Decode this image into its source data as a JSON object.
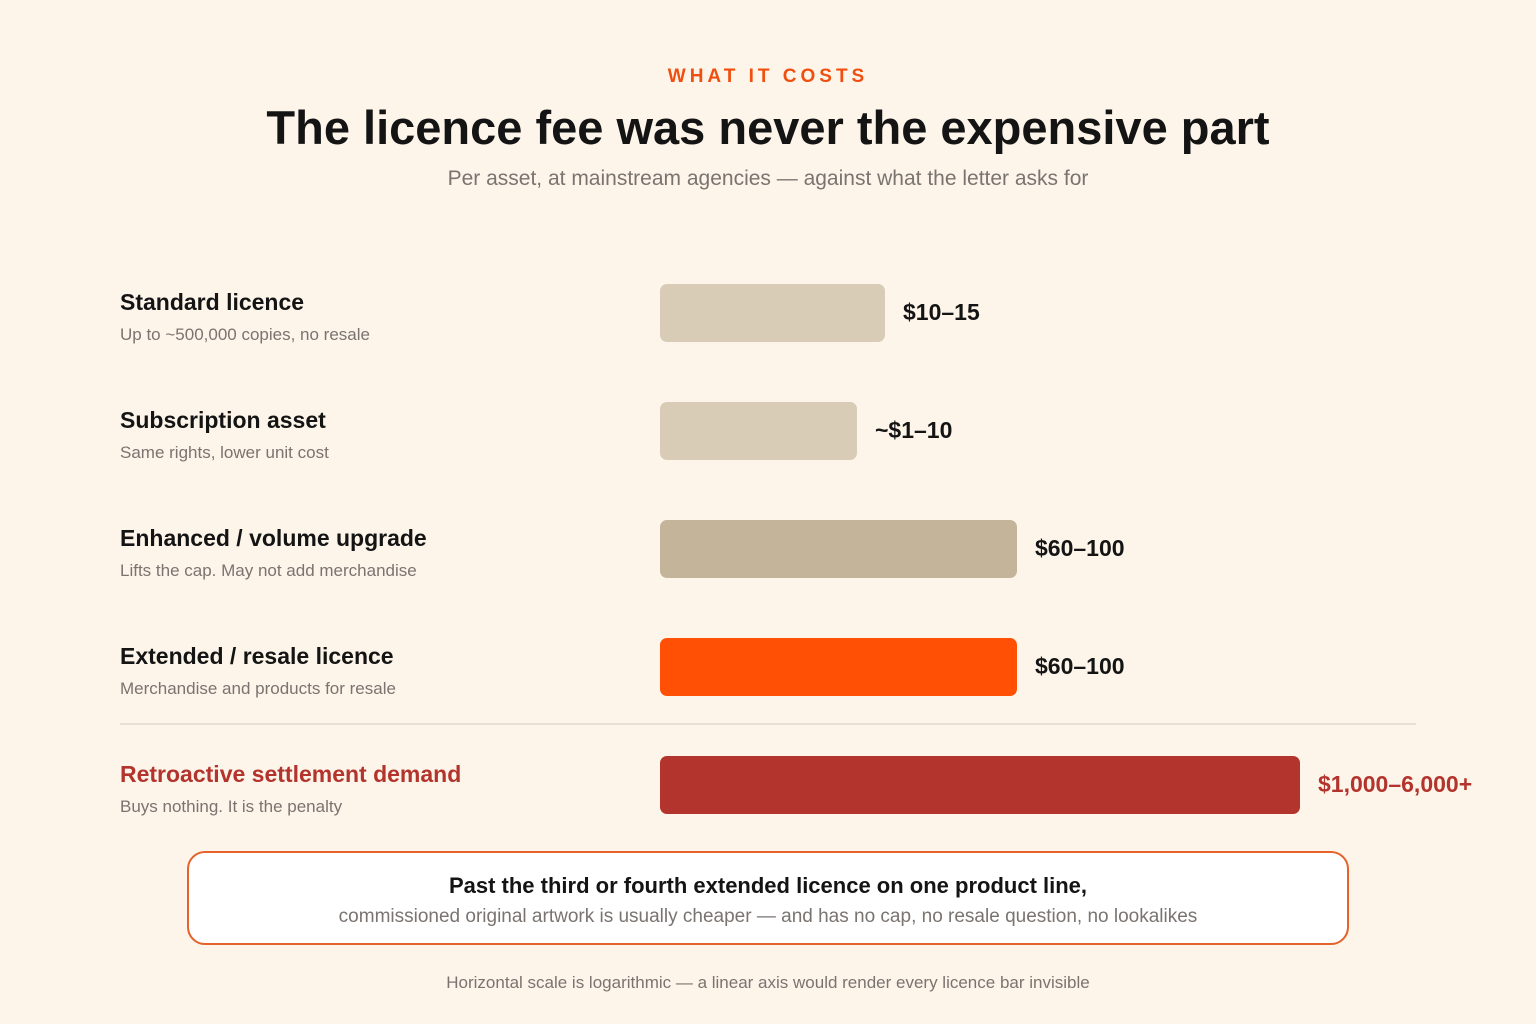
{
  "header": {
    "eyebrow": "WHAT IT COSTS",
    "title": "The licence fee was never the expensive part",
    "subtitle": "Per asset, at mainstream agencies — against what the letter asks for"
  },
  "chart_data": {
    "type": "bar",
    "orientation": "horizontal",
    "x_scale": "log",
    "categories": [
      "Standard licence",
      "Subscription asset",
      "Enhanced / volume upgrade",
      "Extended / resale licence",
      "Retroactive settlement demand"
    ],
    "rows": [
      {
        "label": "Standard licence",
        "note": "Up to ~500,000 copies, no resale",
        "value_label": "$10–15",
        "low": 10,
        "high": 15,
        "color": "#d9ccb6"
      },
      {
        "label": "Subscription asset",
        "note": "Same rights, lower unit cost",
        "value_label": "~$1–10",
        "low": 1,
        "high": 10,
        "color": "#d9ccb6"
      },
      {
        "label": "Enhanced / volume upgrade",
        "note": "Lifts the cap. May not add merchandise",
        "value_label": "$60–100",
        "low": 60,
        "high": 100,
        "color": "#c4b59a"
      },
      {
        "label": "Extended / resale licence",
        "note": "Merchandise and products for resale",
        "value_label": "$60–100",
        "low": 60,
        "high": 100,
        "color": "#ff5005"
      },
      {
        "label": "Retroactive settlement demand",
        "note": "Buys nothing. It is the penalty",
        "value_label": "$1,000–6,000+",
        "low": 1000,
        "high": 6000,
        "color": "#b3342c",
        "highlight": true
      }
    ],
    "title": "",
    "xlabel": "",
    "ylabel": "",
    "grid": false,
    "legend": "none"
  },
  "callout": {
    "main": "Past the third or fourth extended licence on one product line,",
    "sub": "commissioned original artwork is usually cheaper — and has no cap, no resale question, no lookalikes"
  },
  "footnote": "Horizontal scale is logarithmic — a linear axis would render every licence bar invisible"
}
